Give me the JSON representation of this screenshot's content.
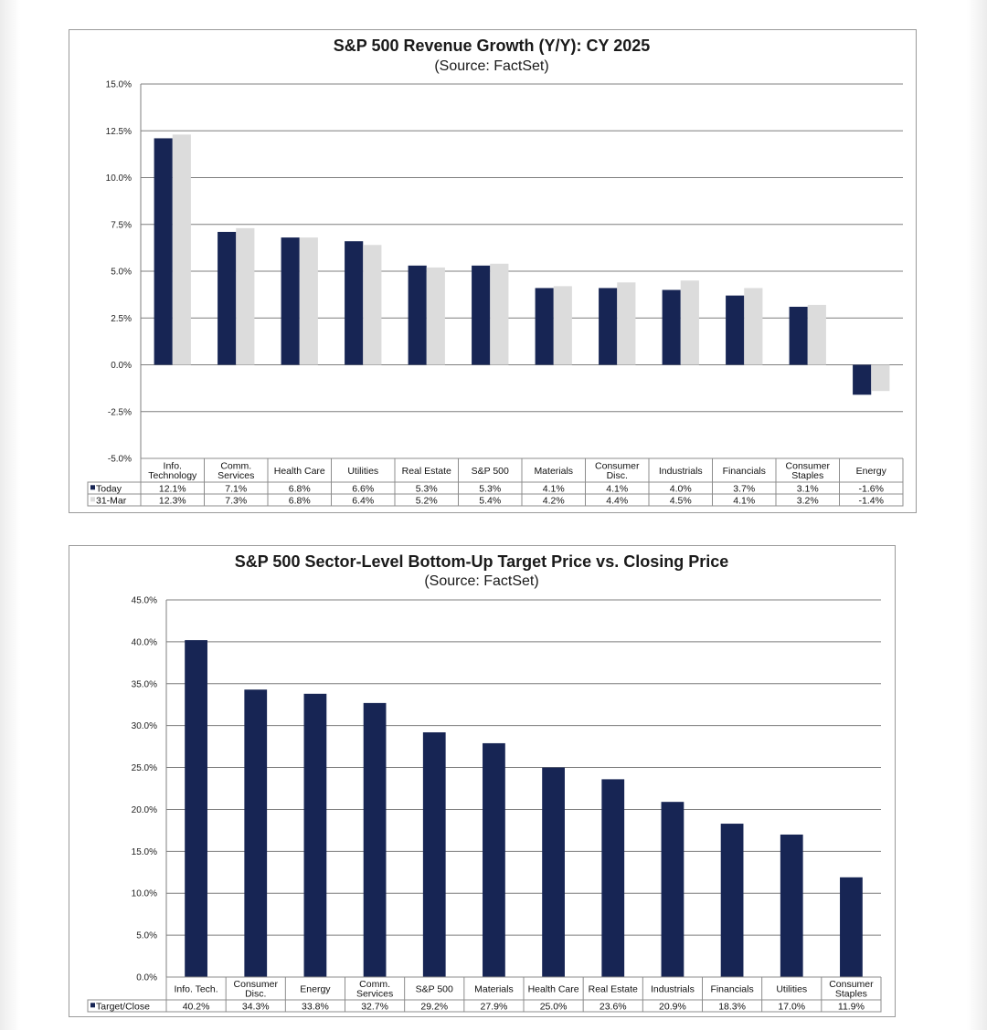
{
  "chart_data": [
    {
      "type": "bar",
      "title": "S&P 500 Revenue Growth (Y/Y): CY 2025",
      "subtitle": "(Source: FactSet)",
      "categories": [
        "Info. Technology",
        "Comm. Services",
        "Health Care",
        "Utilities",
        "Real Estate",
        "S&P 500",
        "Materials",
        "Consumer Disc.",
        "Industrials",
        "Financials",
        "Consumer Staples",
        "Energy"
      ],
      "series": [
        {
          "name": "Today",
          "color": "#172554",
          "values": [
            12.1,
            7.1,
            6.8,
            6.6,
            5.3,
            5.3,
            4.1,
            4.1,
            4.0,
            3.7,
            3.1,
            -1.6
          ],
          "labels": [
            "12.1%",
            "7.1%",
            "6.8%",
            "6.6%",
            "5.3%",
            "5.3%",
            "4.1%",
            "4.1%",
            "4.0%",
            "3.7%",
            "3.1%",
            "-1.6%"
          ]
        },
        {
          "name": "31-Mar",
          "color": "#dcdcdc",
          "values": [
            12.3,
            7.3,
            6.8,
            6.4,
            5.2,
            5.4,
            4.2,
            4.4,
            4.5,
            4.1,
            3.2,
            -1.4
          ],
          "labels": [
            "12.3%",
            "7.3%",
            "6.8%",
            "6.4%",
            "5.2%",
            "5.4%",
            "4.2%",
            "4.4%",
            "4.5%",
            "4.1%",
            "3.2%",
            "-1.4%"
          ]
        }
      ],
      "ylim": [
        -5,
        15
      ],
      "yticks": [
        "15.0%",
        "12.5%",
        "10.0%",
        "7.5%",
        "5.0%",
        "2.5%",
        "0.0%",
        "-2.5%",
        "-5.0%"
      ],
      "grid": true,
      "legend": "data table"
    },
    {
      "type": "bar",
      "title": "S&P 500 Sector-Level Bottom-Up Target Price vs. Closing Price",
      "subtitle": "(Source: FactSet)",
      "categories": [
        "Info. Tech.",
        "Consumer Disc.",
        "Energy",
        "Comm. Services",
        "S&P 500",
        "Materials",
        "Health Care",
        "Real Estate",
        "Industrials",
        "Financials",
        "Utilities",
        "Consumer Staples"
      ],
      "series": [
        {
          "name": "Target/Close",
          "color": "#172554",
          "values": [
            40.2,
            34.3,
            33.8,
            32.7,
            29.2,
            27.9,
            25.0,
            23.6,
            20.9,
            18.3,
            17.0,
            11.9
          ],
          "labels": [
            "40.2%",
            "34.3%",
            "33.8%",
            "32.7%",
            "29.2%",
            "27.9%",
            "25.0%",
            "23.6%",
            "20.9%",
            "18.3%",
            "17.0%",
            "11.9%"
          ]
        }
      ],
      "ylim": [
        0,
        45
      ],
      "yticks": [
        "45.0%",
        "40.0%",
        "35.0%",
        "30.0%",
        "25.0%",
        "20.0%",
        "15.0%",
        "10.0%",
        "5.0%",
        "0.0%"
      ],
      "grid": true,
      "legend": "data table"
    }
  ]
}
